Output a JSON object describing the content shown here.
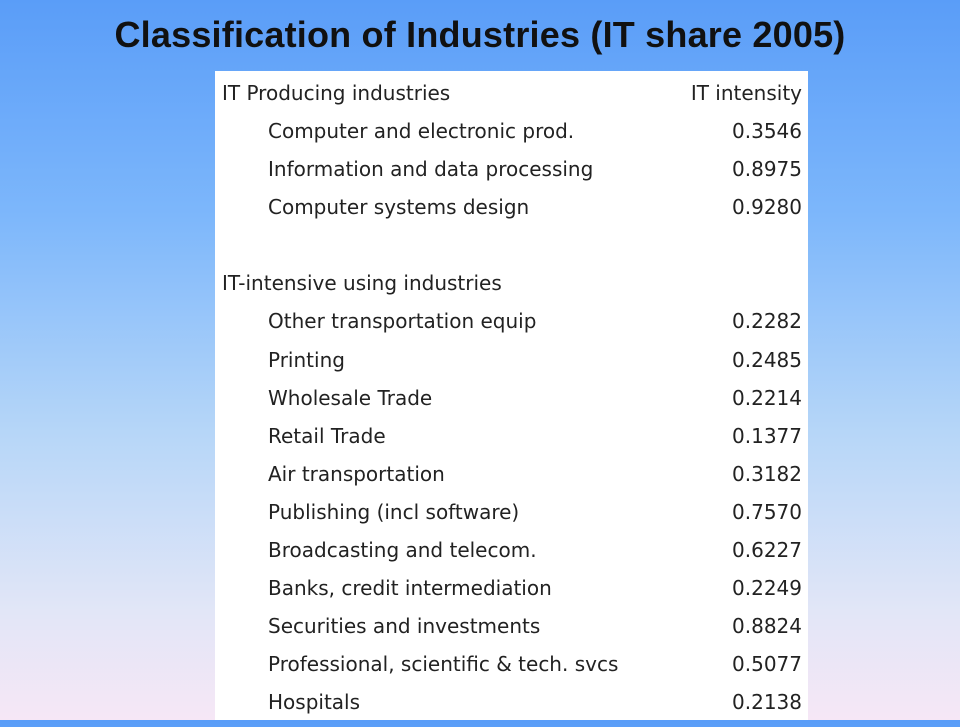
{
  "title": "Classification of Industries (IT share 2005)",
  "table": {
    "header_category": "IT Producing industries",
    "header_value": "IT intensity",
    "producing": [
      {
        "name": "Computer and electronic prod.",
        "value": "0.3546"
      },
      {
        "name": "Information and data processing",
        "value": "0.8975"
      },
      {
        "name": "Computer systems design",
        "value": "0.9280"
      }
    ],
    "using_heading": "IT-intensive using industries",
    "using": [
      {
        "name": "Other transportation equip",
        "value": "0.2282"
      },
      {
        "name": "Printing",
        "value": "0.2485"
      },
      {
        "name": "Wholesale Trade",
        "value": "0.2214"
      },
      {
        "name": "Retail Trade",
        "value": "0.1377"
      },
      {
        "name": "Air transportation",
        "value": "0.3182"
      },
      {
        "name": "Publishing (incl software)",
        "value": "0.7570"
      },
      {
        "name": "Broadcasting and telecom.",
        "value": "0.6227"
      },
      {
        "name": "Banks, credit intermediation",
        "value": "0.2249"
      },
      {
        "name": "Securities and investments",
        "value": "0.8824"
      },
      {
        "name": "Professional, scientific & tech. svcs",
        "value": "0.5077"
      },
      {
        "name": "Hospitals",
        "value": "0.2138"
      }
    ]
  }
}
